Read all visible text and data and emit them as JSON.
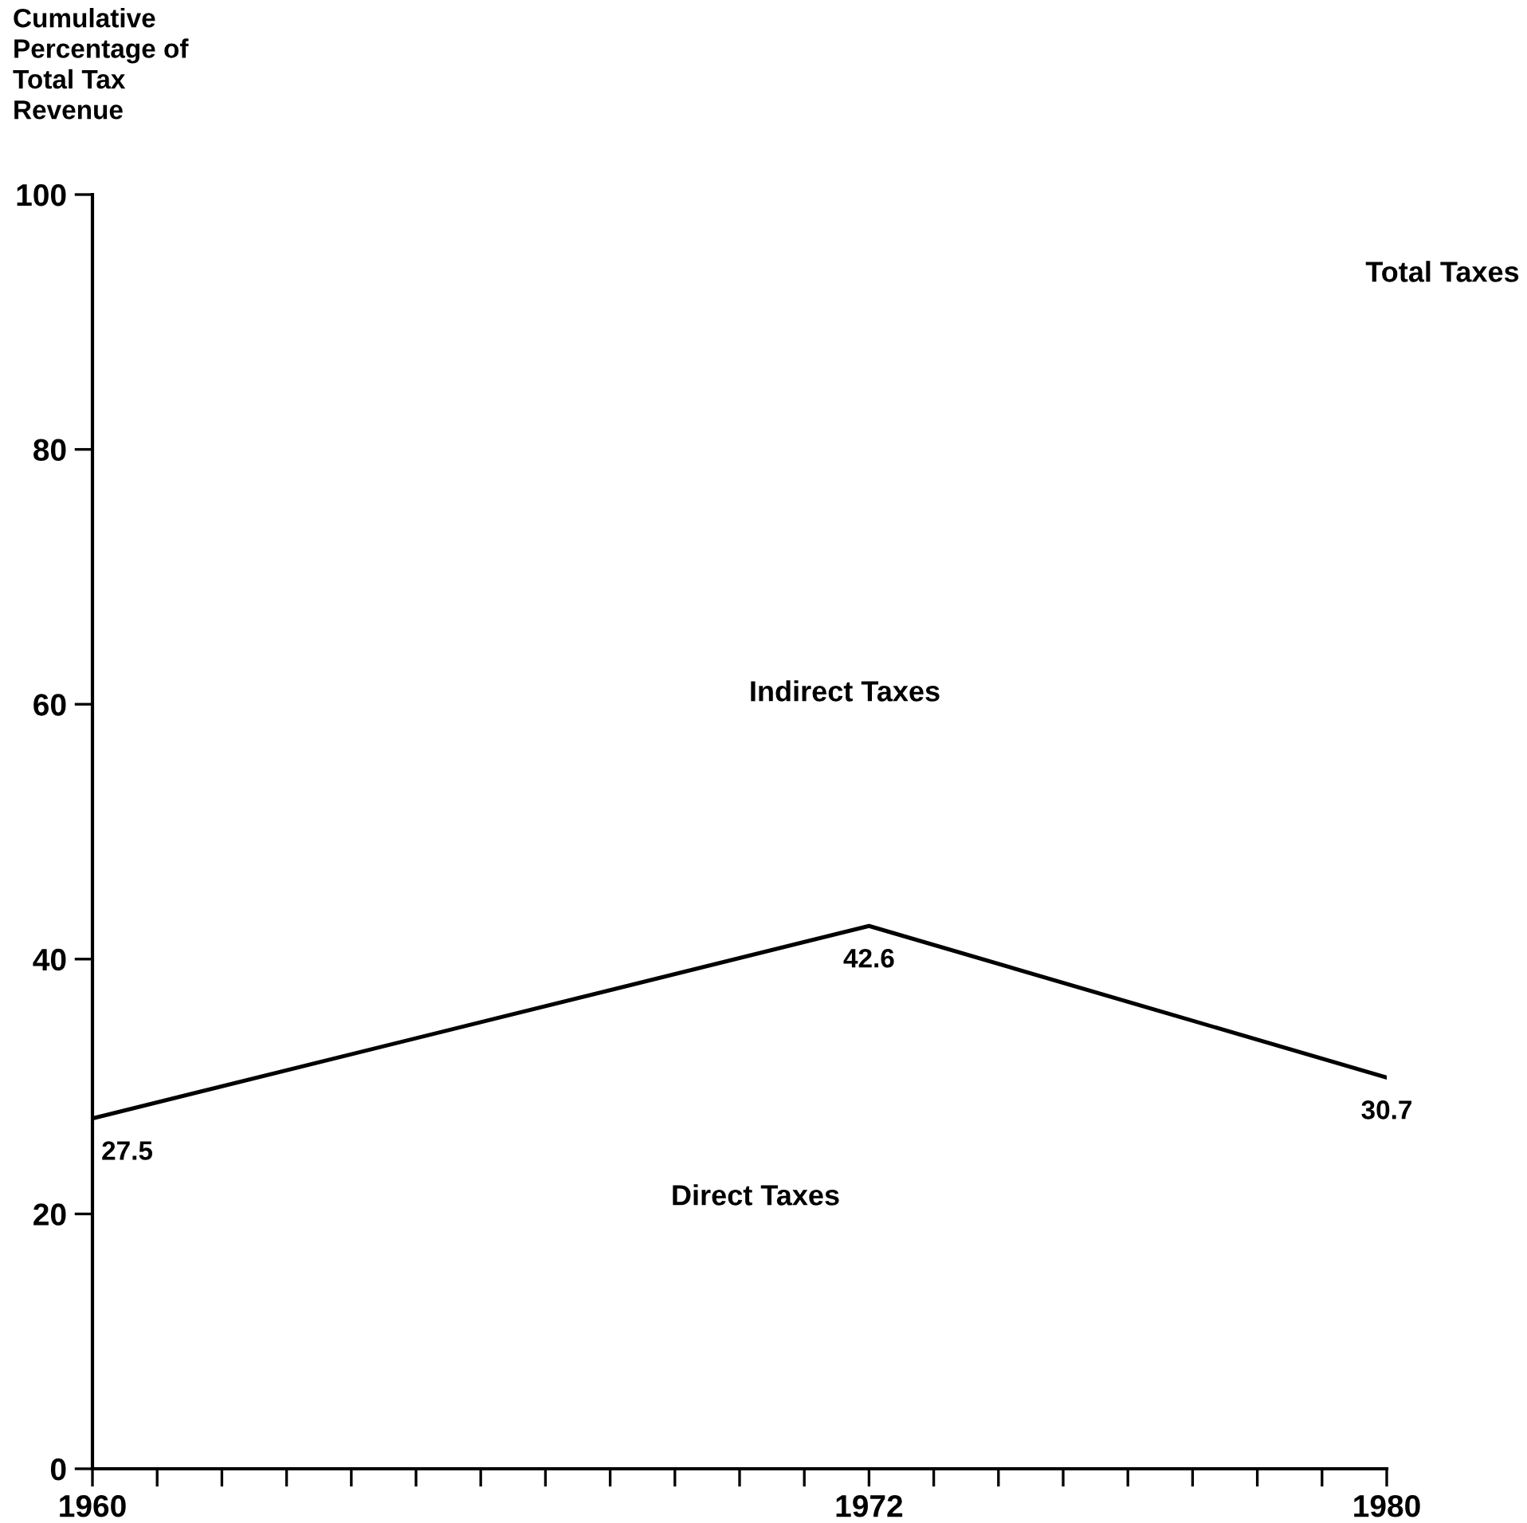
{
  "chart_data": {
    "type": "line",
    "ylabel": "Cumulative\nPercentage of\nTotal Tax\nRevenue",
    "x": [
      1960,
      1972,
      1980
    ],
    "series": [
      {
        "color": "#000000",
        "values": [
          27.5,
          42.6,
          30.7
        ]
      }
    ],
    "data_labels": true,
    "xlim": [
      1960,
      1980
    ],
    "xticks": [
      {
        "value": 1960,
        "label": "1960"
      },
      {
        "value": 1961,
        "label": null
      },
      {
        "value": 1962,
        "label": null
      },
      {
        "value": 1963,
        "label": null
      },
      {
        "value": 1964,
        "label": null
      },
      {
        "value": 1965,
        "label": null
      },
      {
        "value": 1966,
        "label": null
      },
      {
        "value": 1967,
        "label": null
      },
      {
        "value": 1968,
        "label": null
      },
      {
        "value": 1969,
        "label": null
      },
      {
        "value": 1970,
        "label": null
      },
      {
        "value": 1971,
        "label": null
      },
      {
        "value": 1972,
        "label": "1972"
      },
      {
        "value": 1973,
        "label": null
      },
      {
        "value": 1974,
        "label": null
      },
      {
        "value": 1975,
        "label": null
      },
      {
        "value": 1976,
        "label": null
      },
      {
        "value": 1977,
        "label": null
      },
      {
        "value": 1978,
        "label": null
      },
      {
        "value": 1979,
        "label": null
      },
      {
        "value": 1980,
        "label": "1980"
      }
    ],
    "ylim": [
      0,
      100
    ],
    "yticks": [
      0,
      20,
      40,
      60,
      80,
      100
    ],
    "annotations": [
      "Total Taxes",
      "Indirect Taxes",
      "Direct Taxes"
    ],
    "grid": false,
    "legend": false,
    "marker": "none",
    "line_style": "solid"
  }
}
